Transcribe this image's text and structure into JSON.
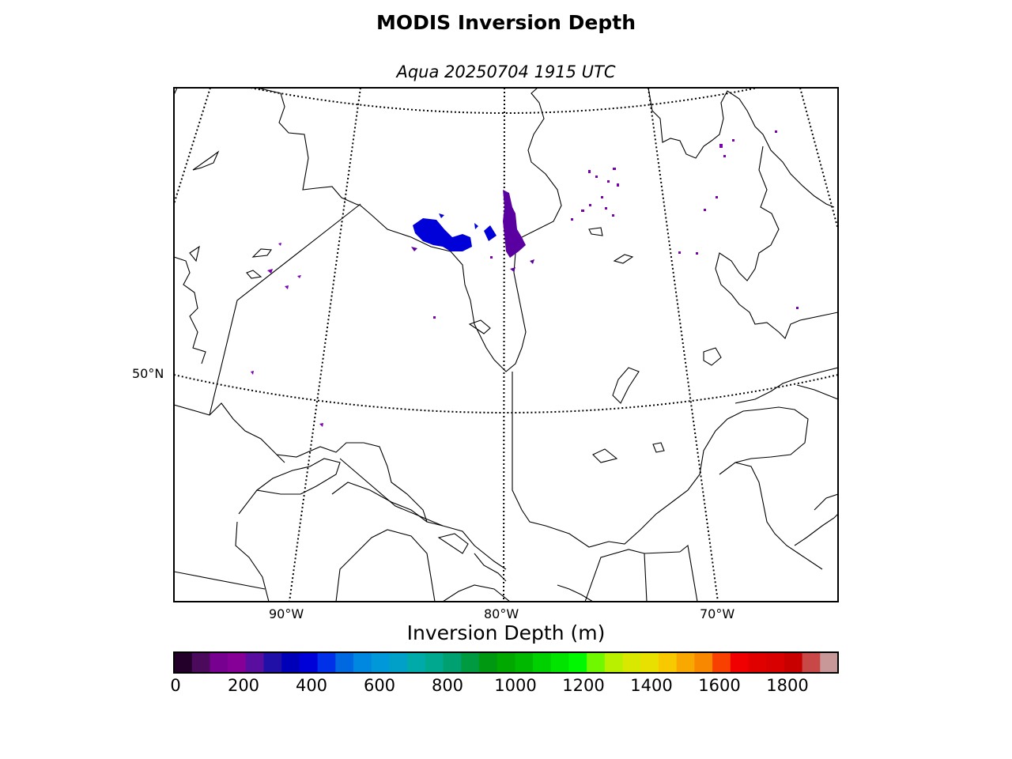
{
  "title": "MODIS Inversion Depth",
  "subtitle": "Aqua 20250704 1915 UTC",
  "map": {
    "region": "Hudson Bay / Quebec / Great Lakes",
    "lat_labels": [
      "50°N"
    ],
    "lon_labels": [
      "90°W",
      "80°W",
      "70°W"
    ],
    "graticule_style": "dotted",
    "data_clusters": [
      {
        "name": "james-bay-west-blue-cluster",
        "color": "#0000d8"
      },
      {
        "name": "hudson-bay-coast-purple-cluster",
        "color": "#5a00a0"
      },
      {
        "name": "ungava-scattered-purple-pixels",
        "color": "#7a00b0"
      }
    ]
  },
  "colorbar": {
    "label": "Inversion Depth (m)",
    "ticks": [
      "0",
      "200",
      "400",
      "600",
      "800",
      "1000",
      "1200",
      "1400",
      "1600",
      "1800"
    ],
    "colors": [
      "#22002a",
      "#4c0a5c",
      "#780090",
      "#860098",
      "#5a0ea0",
      "#2010a8",
      "#0000b8",
      "#0000d8",
      "#0030e8",
      "#0068e0",
      "#0088e0",
      "#0098d8",
      "#00a0c8",
      "#00aaa8",
      "#00a890",
      "#00a070",
      "#009a40",
      "#009810",
      "#00a800",
      "#00b800",
      "#00d000",
      "#00e400",
      "#00f800",
      "#70f800",
      "#b8f000",
      "#d8e800",
      "#e8e000",
      "#f8c800",
      "#f8a800",
      "#f88800",
      "#f84000",
      "#f00000",
      "#e00000",
      "#d80000",
      "#c80000",
      "#c84848",
      "#c89898"
    ]
  }
}
